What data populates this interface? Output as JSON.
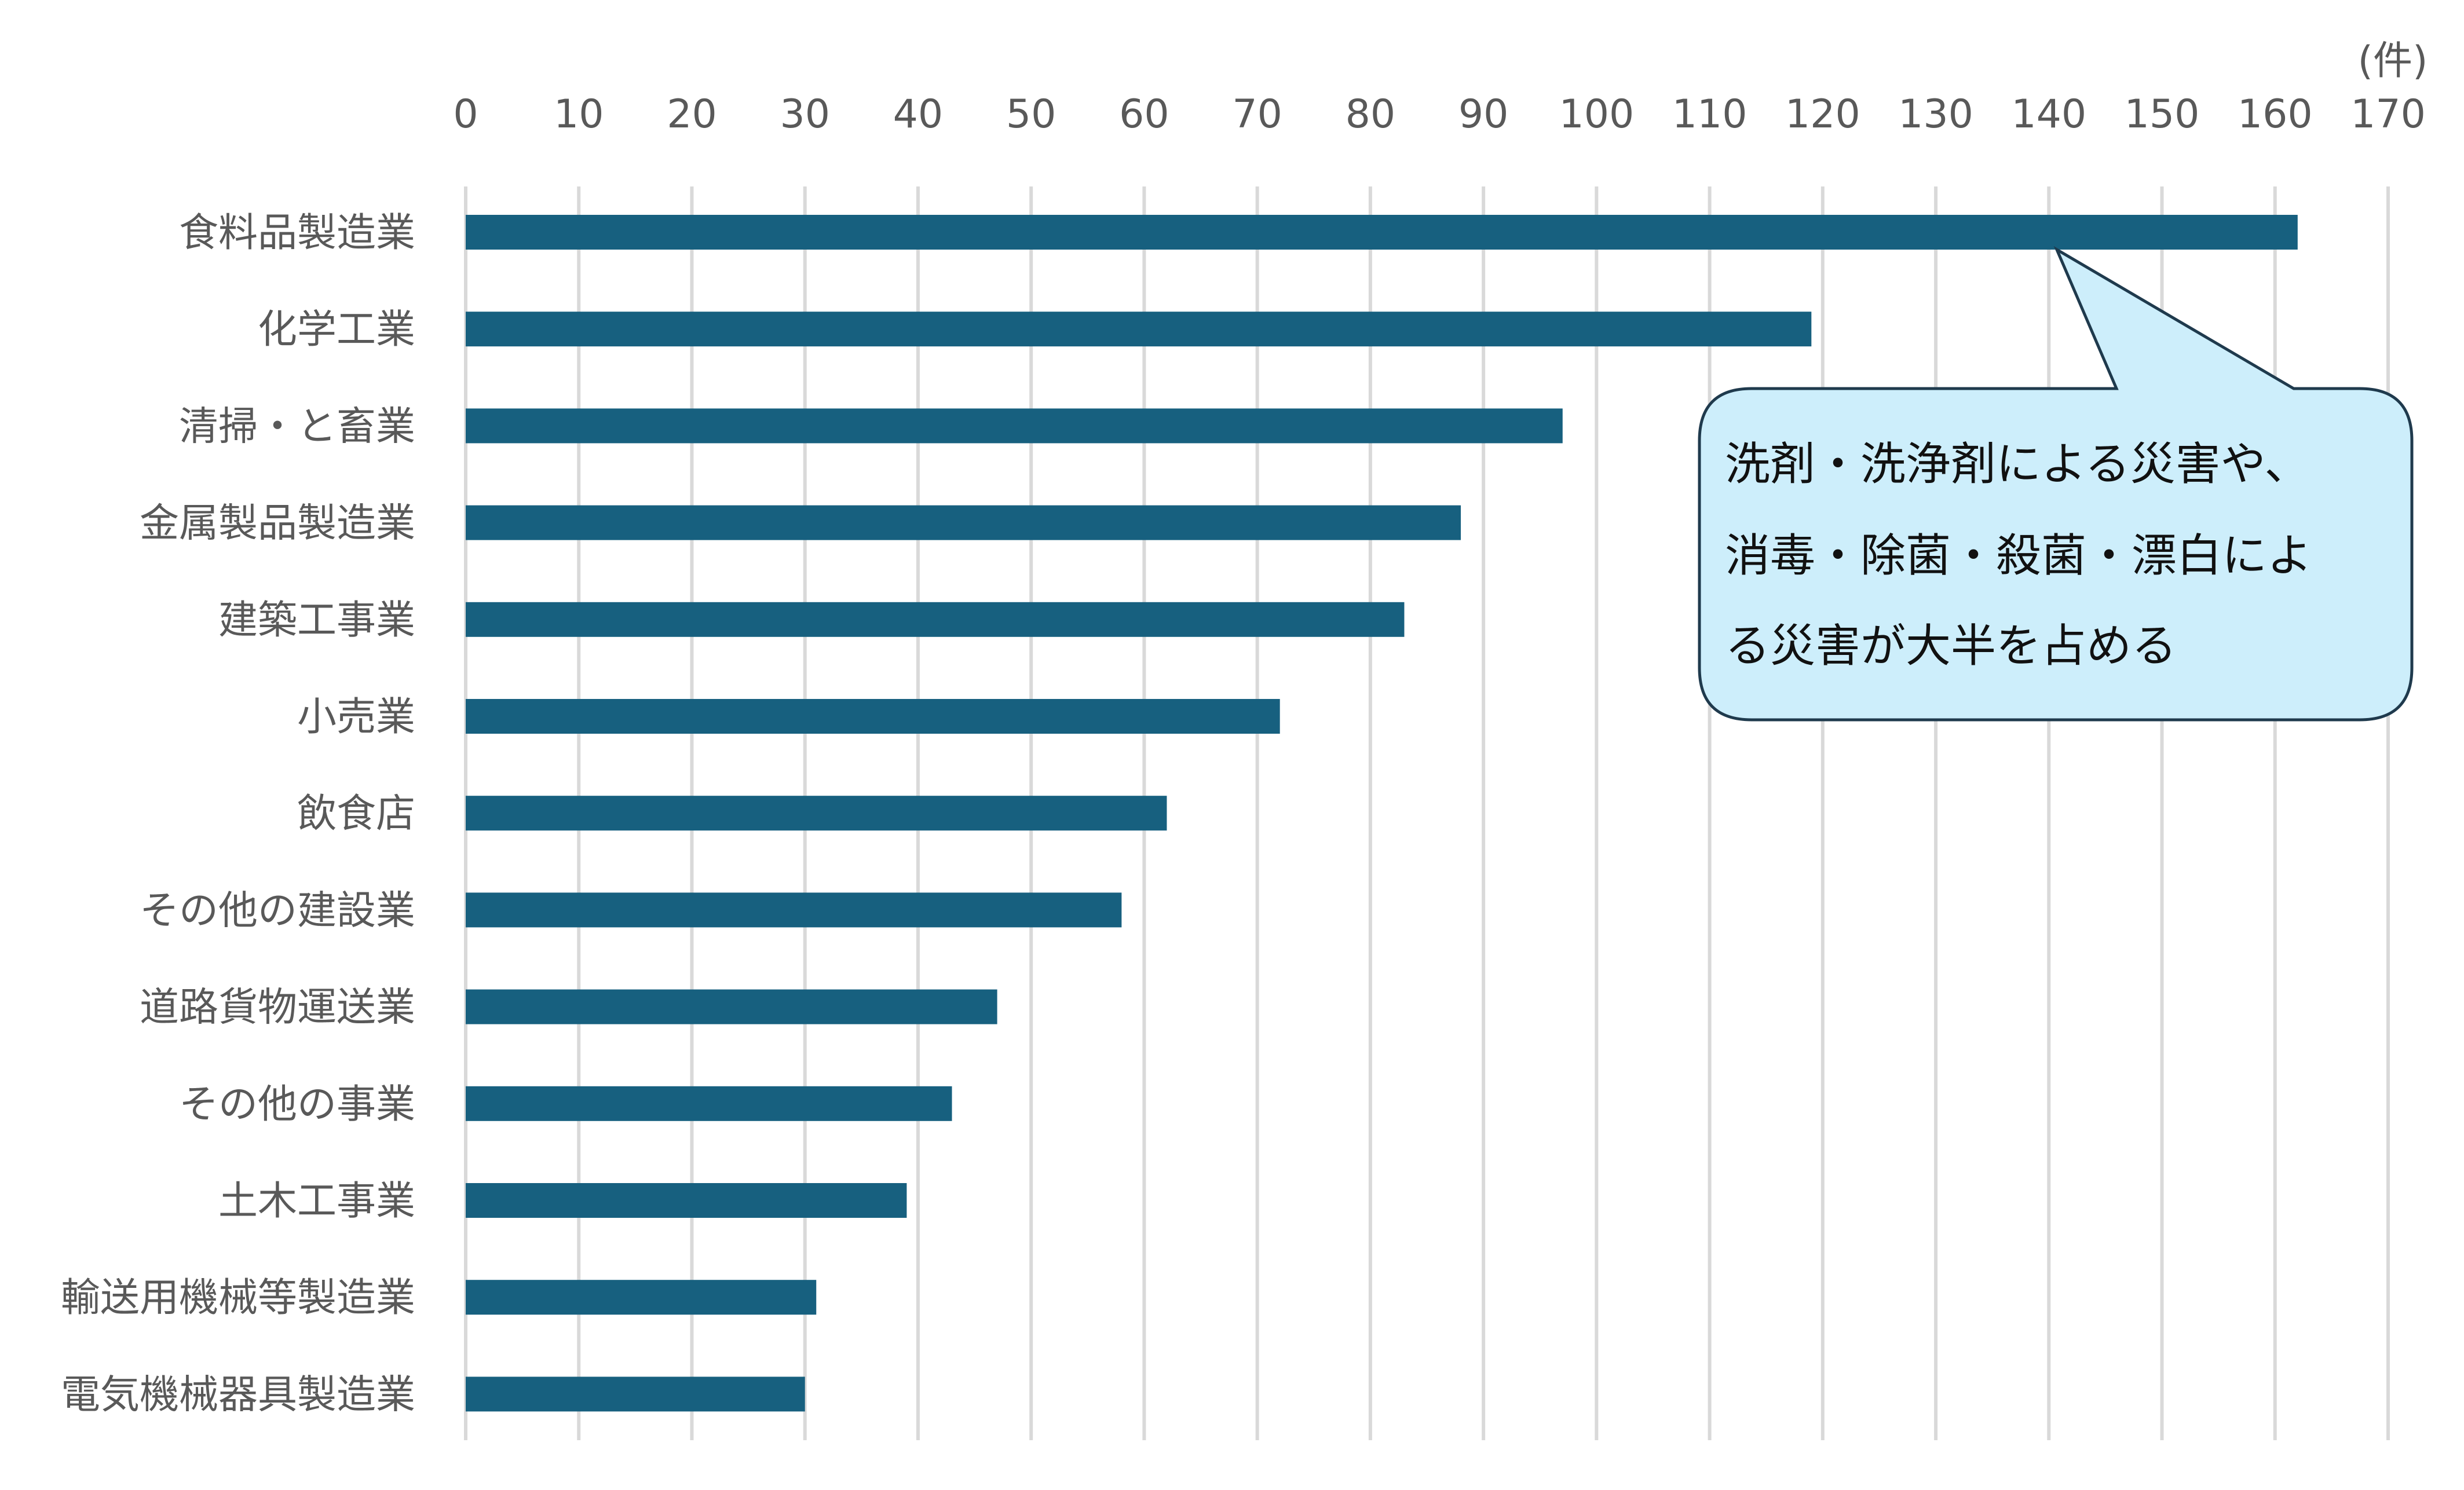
{
  "chart_data": {
    "type": "bar",
    "orientation": "horizontal",
    "unit_label": "(件)",
    "categories": [
      "食料品製造業",
      "化学工業",
      "清掃・と畜業",
      "金属製品製造業",
      "建築工事業",
      "小売業",
      "飲食店",
      "その他の建設業",
      "道路貨物運送業",
      "その他の事業",
      "土木工事業",
      "輸送用機械等製造業",
      "電気機械器具製造業"
    ],
    "values": [
      162,
      119,
      97,
      88,
      83,
      72,
      62,
      58,
      47,
      43,
      39,
      31,
      30
    ],
    "xlim": [
      0,
      170
    ],
    "xticks": [
      0,
      10,
      20,
      30,
      40,
      50,
      60,
      70,
      80,
      90,
      100,
      110,
      120,
      130,
      140,
      150,
      160,
      170
    ],
    "x_axis_position": "top",
    "grid": true,
    "bar_color": "#17607f",
    "grid_color": "#d9d9d9",
    "annotation": {
      "lines": [
        "洗剤・洗浄剤による災害や、",
        "消毒・除菌・殺菌・漂白によ",
        "る災害が大半を占める"
      ],
      "points_to": "食料品製造業",
      "fill": "#cdeefb",
      "stroke": "#1f3a4d"
    }
  }
}
